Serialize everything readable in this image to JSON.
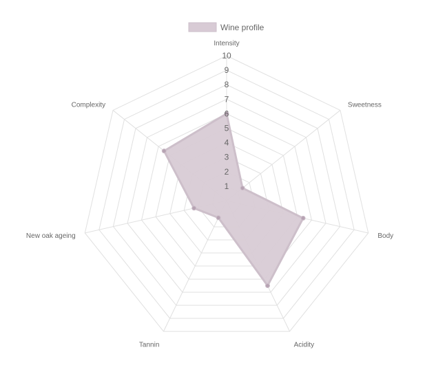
{
  "chart_data": {
    "type": "radar",
    "labels": [
      "Intensity",
      "Sweetness",
      "Body",
      "Acidity",
      "Tannin",
      "New oak ageing",
      "Complexity"
    ],
    "series": [
      {
        "name": "Wine profile",
        "values": [
          6,
          1.4,
          5.4,
          6.5,
          1.3,
          2.3,
          5.5
        ]
      }
    ],
    "r_range": [
      0,
      10
    ],
    "ticks": [
      "1",
      "2",
      "3",
      "4",
      "5",
      "6",
      "7",
      "8",
      "9",
      "10"
    ],
    "legend_position": "top",
    "colors": {
      "fill": "#d8cbd5",
      "stroke": "#cdbfca",
      "point": "#b7a3b3",
      "grid": "#e0e0e0",
      "text": "#666666"
    }
  }
}
